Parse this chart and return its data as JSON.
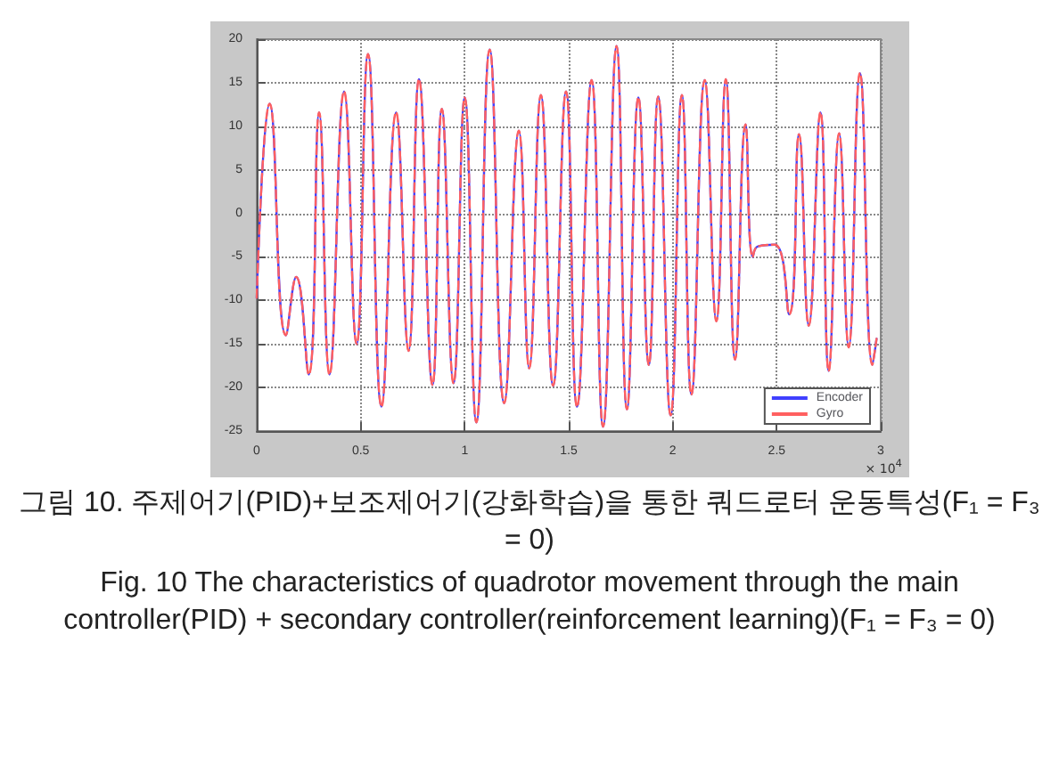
{
  "chart_data": {
    "type": "line",
    "x": [
      0,
      0.062,
      0.14,
      0.19,
      0.25,
      0.3,
      0.35,
      0.42,
      0.48,
      0.535,
      0.6,
      0.67,
      0.73,
      0.78,
      0.845,
      0.89,
      0.946,
      1.0,
      1.056,
      1.12,
      1.19,
      1.26,
      1.31,
      1.366,
      1.425,
      1.487,
      1.54,
      1.61,
      1.665,
      1.73,
      1.78,
      1.835,
      1.885,
      1.93,
      1.99,
      2.044,
      2.09,
      2.154,
      2.21,
      2.255,
      2.3,
      2.35,
      2.385,
      2.41,
      2.49,
      2.56,
      2.607,
      2.654,
      2.71,
      2.75,
      2.8,
      2.846,
      2.9,
      2.96,
      2.98
    ],
    "series": [
      {
        "name": "Encoder",
        "color": "#4040ff",
        "line_style": "solid",
        "values": [
          -9.7,
          12.6,
          -14,
          -7.3,
          -18.5,
          11.6,
          -18.5,
          14,
          -15,
          18.3,
          -22.2,
          11.6,
          -15.8,
          15.4,
          -19.7,
          12,
          -19.5,
          13.3,
          -24,
          18.8,
          -21.8,
          9.5,
          -17.8,
          13.6,
          -19.8,
          14,
          -22.2,
          15.3,
          -24.5,
          19.2,
          -22.5,
          13.3,
          -17.4,
          13.4,
          -23.2,
          13.6,
          -20.8,
          15.3,
          -12.4,
          15.4,
          -16.8,
          10.2,
          -5,
          -3.8,
          -3.6,
          -11.6,
          9.1,
          -12.9,
          11.6,
          -18.1,
          9.2,
          -15.4,
          16.1,
          -17.4,
          -14.4
        ]
      },
      {
        "name": "Gyro",
        "color": "#ff6060",
        "line_style": "dashed",
        "values": [
          -9.7,
          12.6,
          -14,
          -7.3,
          -18.5,
          11.6,
          -18.5,
          14,
          -15,
          18.3,
          -22.2,
          11.6,
          -15.8,
          15.4,
          -19.7,
          12,
          -19.5,
          13.3,
          -24,
          18.8,
          -21.8,
          9.5,
          -17.8,
          13.6,
          -19.8,
          14,
          -22.2,
          15.3,
          -24.5,
          19.2,
          -22.5,
          13.3,
          -17.4,
          13.4,
          -23.2,
          13.6,
          -20.8,
          15.3,
          -12.4,
          15.4,
          -16.8,
          10.2,
          -5,
          -3.8,
          -3.6,
          -11.6,
          9.1,
          -12.9,
          11.6,
          -18.1,
          9.2,
          -15.4,
          16.1,
          -17.4,
          -14.4
        ]
      }
    ],
    "xlim": [
      0,
      3
    ],
    "xticks": [
      0,
      0.5,
      1,
      1.5,
      2,
      2.5,
      3
    ],
    "ylim": [
      -25,
      20
    ],
    "yticks": [
      -25,
      -20,
      -15,
      -10,
      -5,
      0,
      5,
      10,
      15,
      20
    ],
    "grid": true,
    "legend": "bottom right",
    "annotations": [
      "× 10$^{4}$",
      "그림 10. 주제어기(PID)+보조제어기(강화학습)을 통한 쿼드로터 운동특성(F₁ = F₃ = 0)",
      "Fig. 10 The characteristics of quadrotor movement through the main controller(PID) + secondary controller(reinforcement learning)(F₁ = F₃ = 0)"
    ]
  }
}
